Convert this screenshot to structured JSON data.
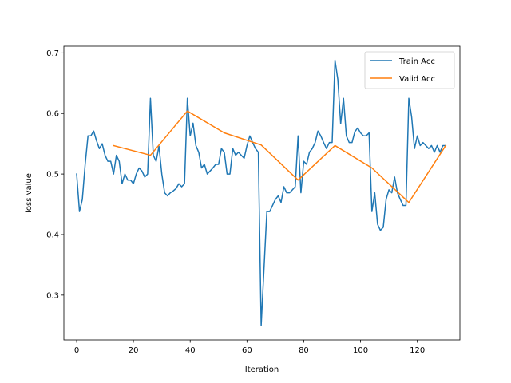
{
  "chart_data": {
    "type": "line",
    "xlabel": "Iteration",
    "ylabel": "loss value",
    "xlim": [
      -4.5,
      135
    ],
    "ylim": [
      0.226,
      0.711
    ],
    "xticks": [
      0,
      20,
      40,
      60,
      80,
      100,
      120
    ],
    "yticks": [
      0.3,
      0.4,
      0.5,
      0.6,
      0.7
    ],
    "xtick_labels": [
      "0",
      "20",
      "40",
      "60",
      "80",
      "100",
      "120"
    ],
    "ytick_labels": [
      "0.3",
      "0.4",
      "0.5",
      "0.6",
      "0.7"
    ],
    "grid": false,
    "legend_position": "top-right",
    "series": [
      {
        "name": "Train Acc",
        "color": "#1f77b4",
        "x": [
          0,
          1,
          2,
          3,
          4,
          5,
          6,
          7,
          8,
          9,
          10,
          11,
          12,
          13,
          14,
          15,
          16,
          17,
          18,
          19,
          20,
          21,
          22,
          23,
          24,
          25,
          26,
          27,
          28,
          29,
          30,
          31,
          32,
          33,
          34,
          35,
          36,
          37,
          38,
          39,
          40,
          41,
          42,
          43,
          44,
          45,
          46,
          47,
          48,
          49,
          50,
          51,
          52,
          53,
          54,
          55,
          56,
          57,
          58,
          59,
          60,
          61,
          62,
          63,
          64,
          65,
          66,
          67,
          68,
          69,
          70,
          71,
          72,
          73,
          74,
          75,
          76,
          77,
          78,
          79,
          80,
          81,
          82,
          83,
          84,
          85,
          86,
          87,
          88,
          89,
          90,
          91,
          92,
          93,
          94,
          95,
          96,
          97,
          98,
          99,
          100,
          101,
          102,
          103,
          104,
          105,
          106,
          107,
          108,
          109,
          110,
          111,
          112,
          113,
          114,
          115,
          116,
          117,
          118,
          119,
          120,
          121,
          122,
          123,
          124,
          125,
          126,
          127,
          128,
          129,
          130
        ],
        "y": [
          0.5,
          0.438,
          0.458,
          0.516,
          0.563,
          0.563,
          0.571,
          0.555,
          0.542,
          0.55,
          0.531,
          0.521,
          0.521,
          0.5,
          0.531,
          0.521,
          0.484,
          0.5,
          0.49,
          0.49,
          0.484,
          0.5,
          0.51,
          0.505,
          0.495,
          0.5,
          0.625,
          0.531,
          0.521,
          0.546,
          0.5,
          0.469,
          0.464,
          0.469,
          0.472,
          0.476,
          0.484,
          0.479,
          0.484,
          0.625,
          0.563,
          0.584,
          0.547,
          0.536,
          0.51,
          0.516,
          0.5,
          0.505,
          0.51,
          0.516,
          0.516,
          0.542,
          0.536,
          0.5,
          0.5,
          0.542,
          0.531,
          0.536,
          0.531,
          0.526,
          0.547,
          0.563,
          0.552,
          0.542,
          0.536,
          0.25,
          0.344,
          0.438,
          0.438,
          0.448,
          0.458,
          0.464,
          0.453,
          0.479,
          0.469,
          0.469,
          0.474,
          0.479,
          0.563,
          0.469,
          0.521,
          0.516,
          0.536,
          0.542,
          0.552,
          0.571,
          0.563,
          0.552,
          0.542,
          0.552,
          0.552,
          0.688,
          0.656,
          0.583,
          0.625,
          0.563,
          0.552,
          0.552,
          0.57,
          0.576,
          0.568,
          0.563,
          0.563,
          0.568,
          0.438,
          0.469,
          0.417,
          0.407,
          0.412,
          0.458,
          0.474,
          0.469,
          0.495,
          0.469,
          0.458,
          0.448,
          0.448,
          0.625,
          0.594,
          0.542,
          0.563,
          0.547,
          0.552,
          0.547,
          0.542,
          0.547,
          0.536,
          0.547,
          0.536,
          0.547,
          0.547
        ]
      },
      {
        "name": "Valid Acc",
        "color": "#ff7f0e",
        "x": [
          13,
          26,
          39,
          52,
          65,
          78,
          91,
          104,
          117,
          130
        ],
        "y": [
          0.547,
          0.531,
          0.604,
          0.568,
          0.548,
          0.49,
          0.547,
          0.51,
          0.453,
          0.547
        ]
      }
    ]
  }
}
